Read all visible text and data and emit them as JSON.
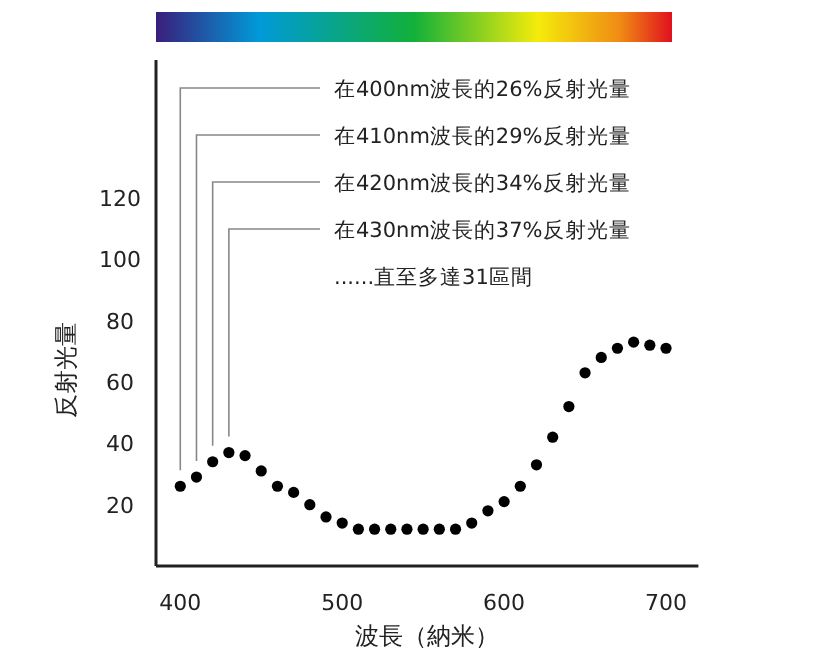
{
  "chart_data": {
    "type": "scatter",
    "xlabel": "波長（納米）",
    "ylabel": "反射光量",
    "x": [
      400,
      410,
      420,
      430,
      440,
      450,
      460,
      470,
      480,
      490,
      500,
      510,
      520,
      530,
      540,
      550,
      560,
      570,
      580,
      590,
      600,
      610,
      620,
      630,
      640,
      650,
      660,
      670,
      680,
      690,
      700
    ],
    "series": [
      {
        "color": "#000000",
        "values": [
          26,
          29,
          34,
          37,
          36,
          31,
          26,
          24,
          20,
          16,
          14,
          12,
          12,
          12,
          12,
          12,
          12,
          12,
          14,
          18,
          21,
          26,
          33,
          42,
          52,
          63,
          68,
          71,
          73,
          72,
          71
        ]
      }
    ],
    "xlim": [
      385,
      720
    ],
    "ylim": [
      0,
      165
    ],
    "xticks": [
      400,
      500,
      600,
      700
    ],
    "yticks": [
      20,
      40,
      60,
      80,
      100,
      120
    ],
    "marker": "circle",
    "grid": false,
    "annotations": [
      {
        "text": "在400nm波長的26%反射光量",
        "x": 400,
        "y": 26
      },
      {
        "text": "在410nm波長的29%反射光量",
        "x": 410,
        "y": 29
      },
      {
        "text": "在420nm波長的34%反射光量",
        "x": 420,
        "y": 34
      },
      {
        "text": "在430nm波長的37%反射光量",
        "x": 430,
        "y": 37
      },
      "......直至多達31區間"
    ]
  }
}
